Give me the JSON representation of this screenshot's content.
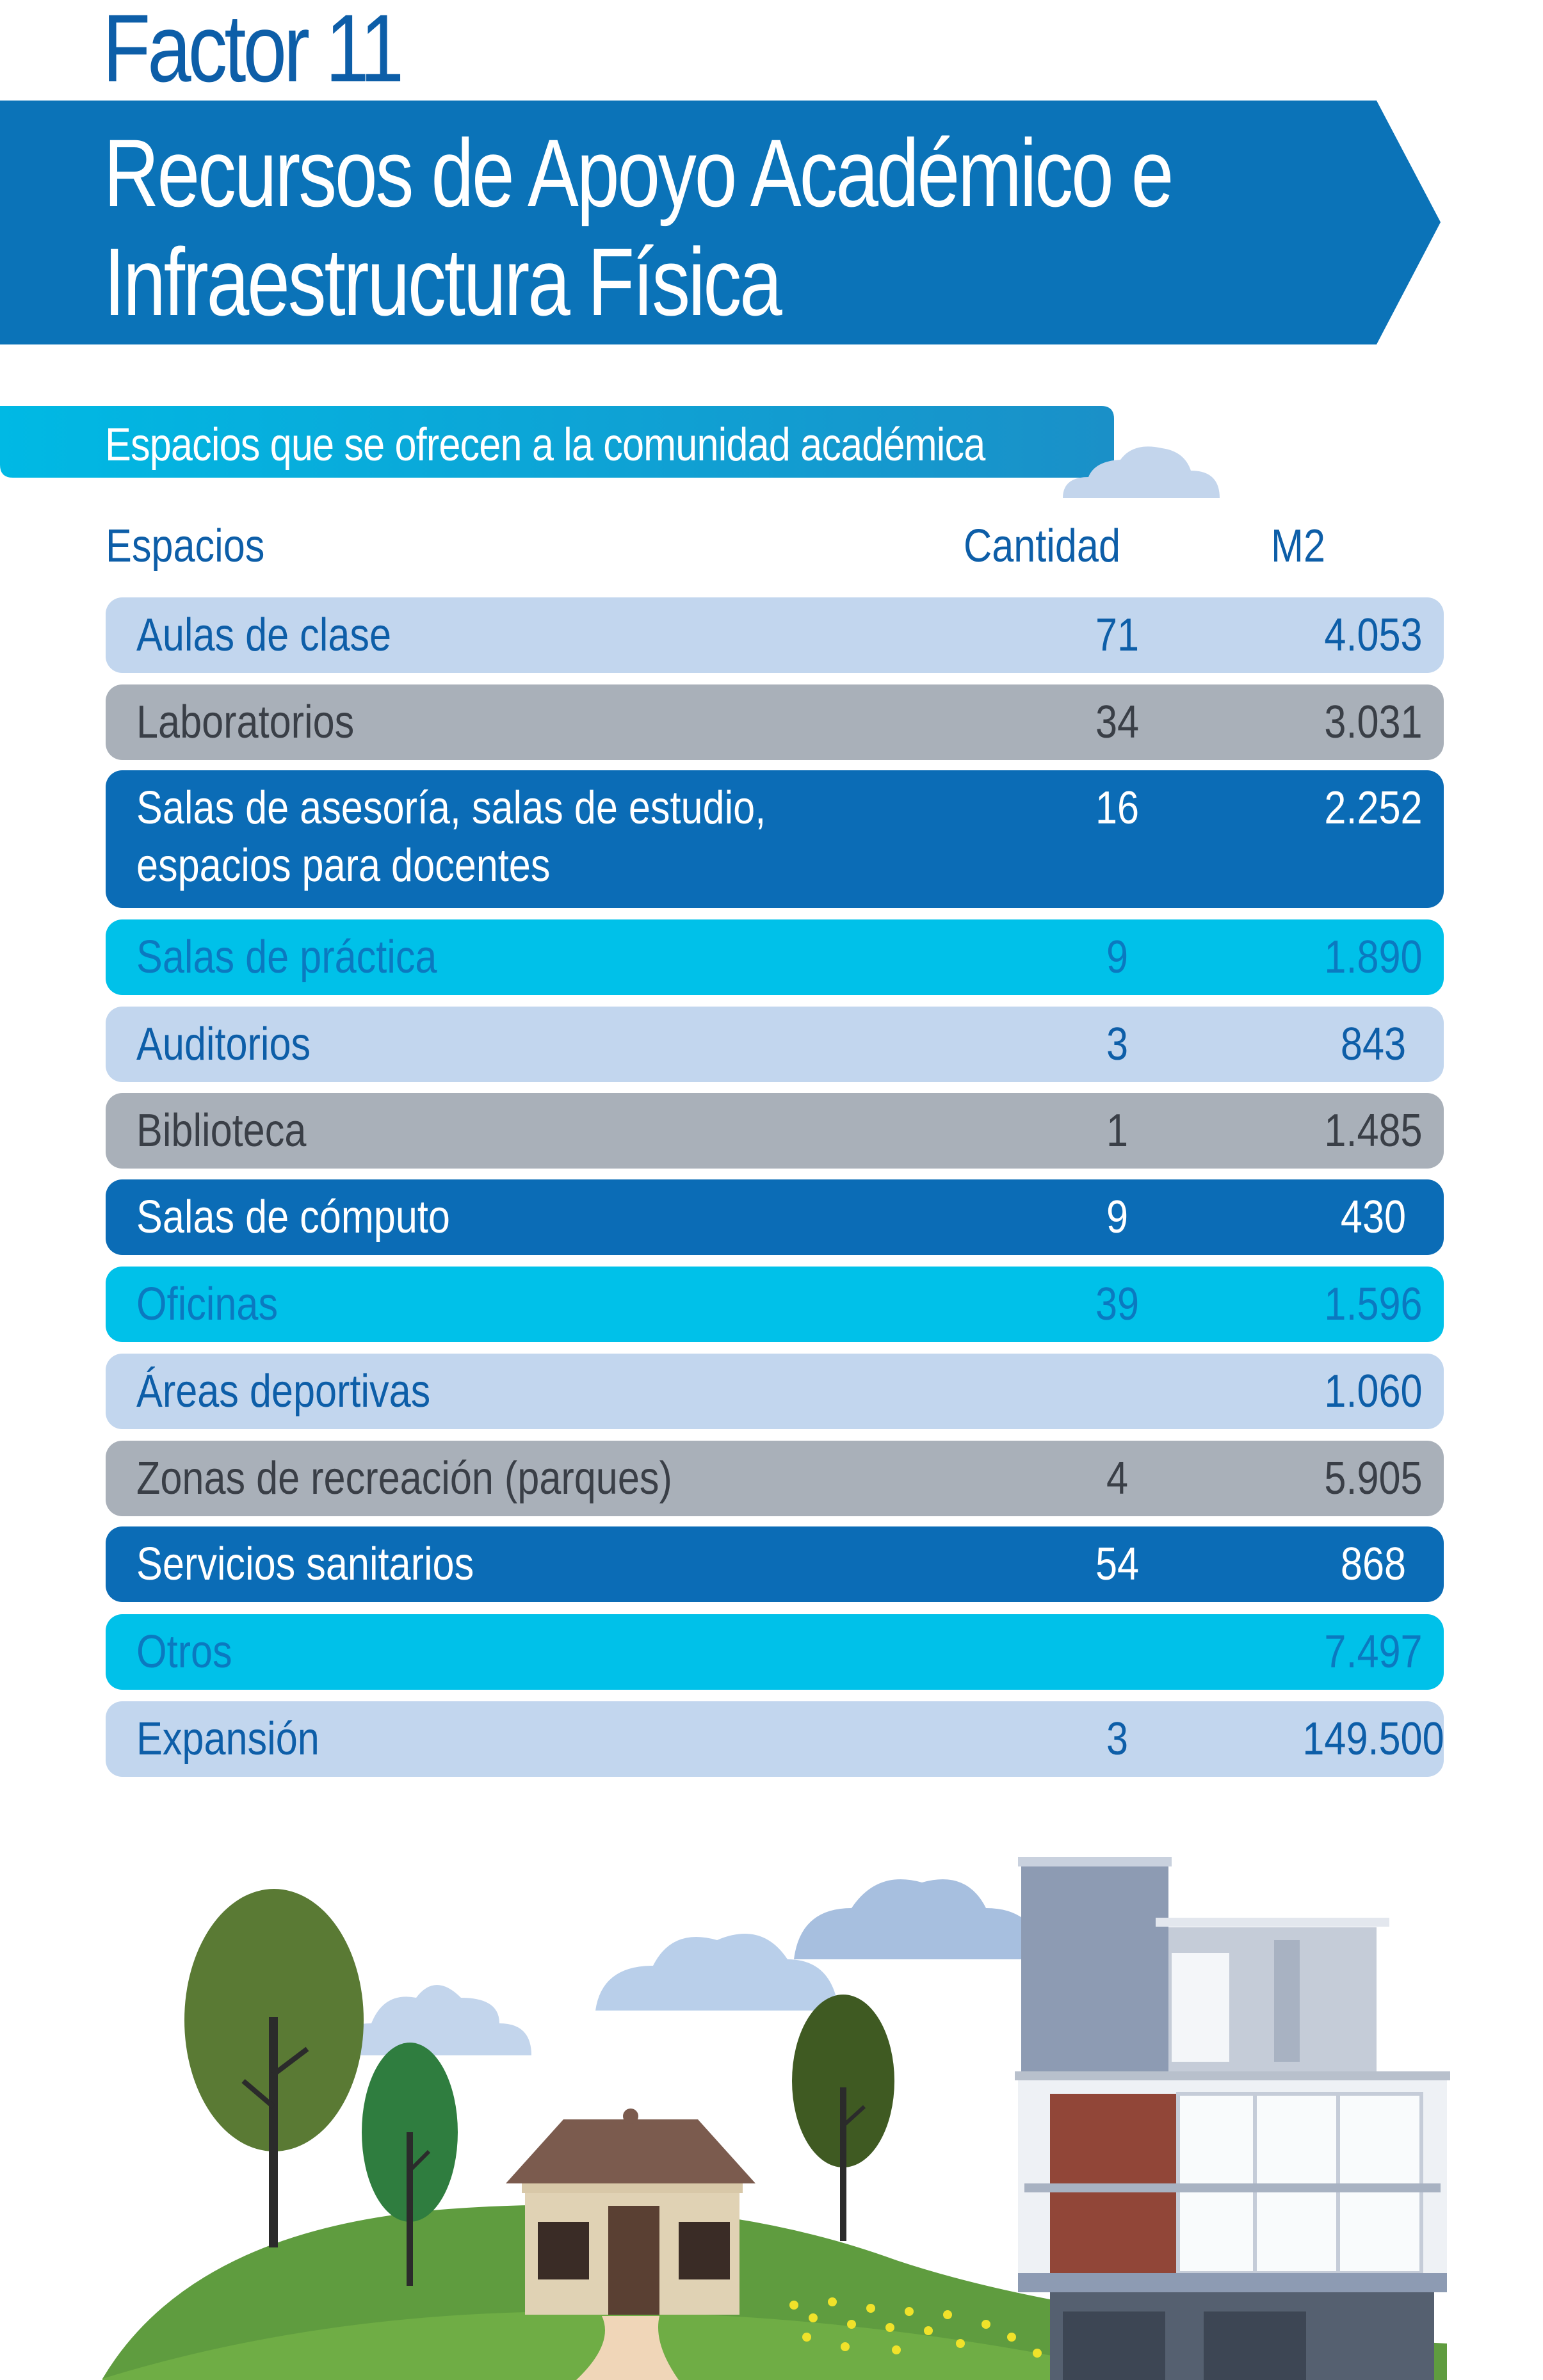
{
  "header": {
    "factor": "Factor 11",
    "title_line1": "Recursos de Apoyo Académico e",
    "title_line2": "Infraestructura Física"
  },
  "section": {
    "label": "Espacios que se ofrecen a la comunidad académica"
  },
  "table": {
    "columns": [
      "Espacios",
      "Cantidad",
      "M2"
    ],
    "rows": [
      {
        "name": "Aulas de clase",
        "qty": "71",
        "m2": "4.053"
      },
      {
        "name": "Laboratorios",
        "qty": "34",
        "m2": "3.031"
      },
      {
        "name_line1": "Salas de asesoría, salas de estudio,",
        "name_line2": "espacios para docentes",
        "qty": "16",
        "m2": "2.252"
      },
      {
        "name": "Salas de práctica",
        "qty": "9",
        "m2": "1.890"
      },
      {
        "name": "Auditorios",
        "qty": "3",
        "m2": "843"
      },
      {
        "name": "Biblioteca",
        "qty": "1",
        "m2": "1.485"
      },
      {
        "name": "Salas de cómputo",
        "qty": "9",
        "m2": "430"
      },
      {
        "name": "Oficinas",
        "qty": "39",
        "m2": "1.596"
      },
      {
        "name": "Áreas deportivas",
        "qty": "",
        "m2": "1.060"
      },
      {
        "name": "Zonas de recreación (parques)",
        "qty": "4",
        "m2": "5.905"
      },
      {
        "name": "Servicios sanitarios",
        "qty": "54",
        "m2": "868"
      },
      {
        "name": "Otros",
        "qty": "",
        "m2": "7.497"
      },
      {
        "name": "Expansión",
        "qty": "3",
        "m2": "149.500"
      }
    ]
  },
  "colors": {
    "dark_blue": "#0b6cb6",
    "light_blue": "#c2d6ee",
    "gray": "#a9b0b9",
    "cyan": "#00c1e9",
    "title_blue": "#0d5ea8"
  },
  "illustration": {
    "icons": [
      "trees-icon",
      "house-icon",
      "building-icon",
      "cloud-icon",
      "hill-icon"
    ]
  }
}
